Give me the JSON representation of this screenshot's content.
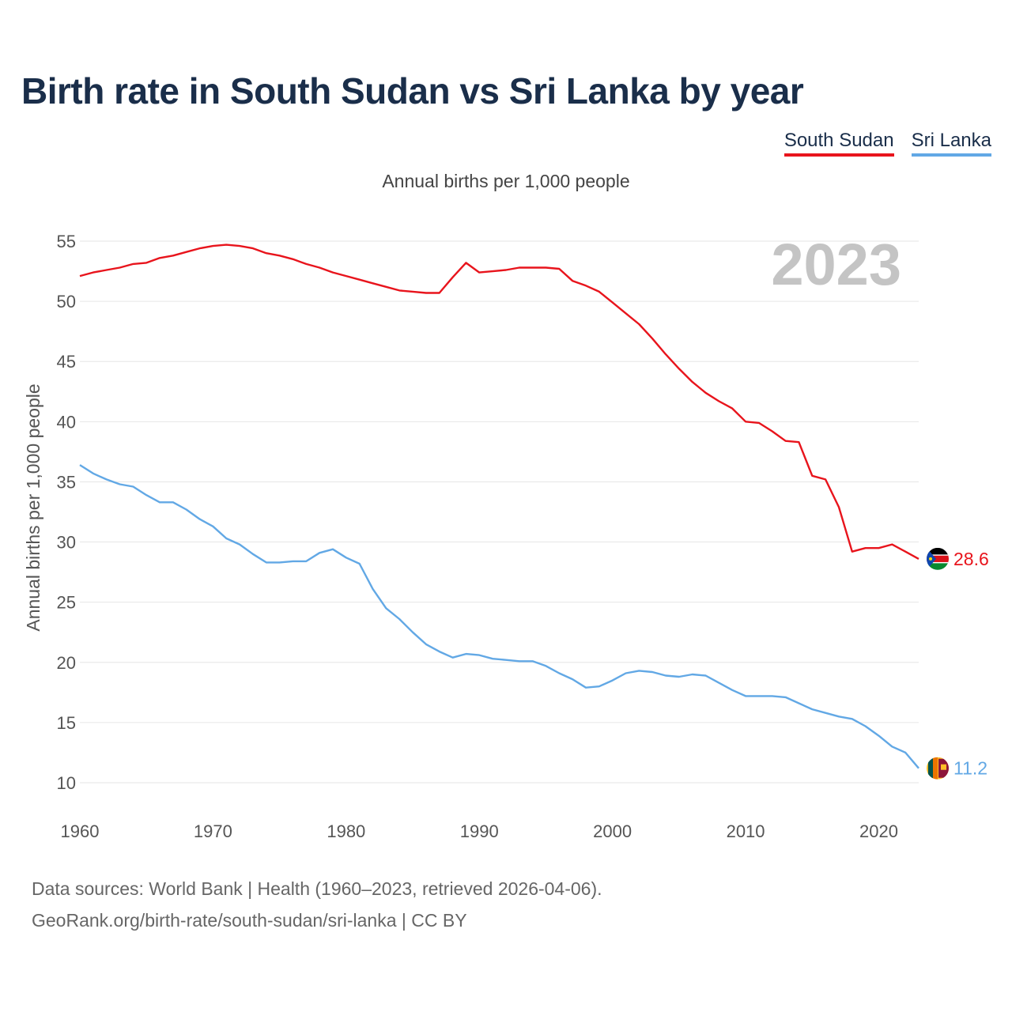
{
  "title": "Birth rate in South Sudan vs Sri Lanka by year",
  "subtitle": "Annual births per 1,000 people",
  "year_watermark": "2023",
  "footer": {
    "line1": "Data sources: World Bank | Health (1960–2023, retrieved 2026-04-06).",
    "line2": "GeoRank.org/birth-rate/south-sudan/sri-lanka | CC BY"
  },
  "legend": [
    {
      "name": "South Sudan",
      "color": "#e8141c"
    },
    {
      "name": "Sri Lanka",
      "color": "#62a8e5"
    }
  ],
  "chart_data": {
    "type": "line",
    "title": "Birth rate in South Sudan vs Sri Lanka by year",
    "ylabel": "Annual births per 1,000 people",
    "xlabel": "",
    "xlim": [
      1960,
      2023
    ],
    "ylim": [
      10,
      55
    ],
    "x_ticks": [
      1960,
      1970,
      1980,
      1990,
      2000,
      2010,
      2020
    ],
    "y_ticks": [
      10,
      15,
      20,
      25,
      30,
      35,
      40,
      45,
      50,
      55
    ],
    "grid": true,
    "x": [
      1960,
      1961,
      1962,
      1963,
      1964,
      1965,
      1966,
      1967,
      1968,
      1969,
      1970,
      1971,
      1972,
      1973,
      1974,
      1975,
      1976,
      1977,
      1978,
      1979,
      1980,
      1981,
      1982,
      1983,
      1984,
      1985,
      1986,
      1987,
      1988,
      1989,
      1990,
      1991,
      1992,
      1993,
      1994,
      1995,
      1996,
      1997,
      1998,
      1999,
      2000,
      2001,
      2002,
      2003,
      2004,
      2005,
      2006,
      2007,
      2008,
      2009,
      2010,
      2011,
      2012,
      2013,
      2014,
      2015,
      2016,
      2017,
      2018,
      2019,
      2020,
      2021,
      2022,
      2023
    ],
    "series": [
      {
        "name": "South Sudan",
        "color": "#e8141c",
        "end_label": "28.6",
        "values": [
          52.1,
          52.4,
          52.6,
          52.8,
          53.1,
          53.2,
          53.6,
          53.8,
          54.1,
          54.4,
          54.6,
          54.7,
          54.6,
          54.4,
          54.0,
          53.8,
          53.5,
          53.1,
          52.8,
          52.4,
          52.1,
          51.8,
          51.5,
          51.2,
          50.9,
          50.8,
          50.7,
          50.7,
          52.0,
          53.2,
          52.4,
          52.5,
          52.6,
          52.8,
          52.8,
          52.8,
          52.7,
          51.7,
          51.3,
          50.8,
          49.9,
          49.0,
          48.1,
          46.9,
          45.6,
          44.4,
          43.3,
          42.4,
          41.7,
          41.1,
          40.0,
          39.9,
          39.2,
          38.4,
          38.3,
          35.5,
          35.2,
          32.9,
          29.2,
          29.5,
          29.5,
          29.8,
          29.2,
          28.6
        ]
      },
      {
        "name": "Sri Lanka",
        "color": "#62a8e5",
        "end_label": "11.2",
        "values": [
          36.4,
          35.7,
          35.2,
          34.8,
          34.6,
          33.9,
          33.3,
          33.3,
          32.7,
          31.9,
          31.3,
          30.3,
          29.8,
          29.0,
          28.3,
          28.3,
          28.4,
          28.4,
          29.1,
          29.4,
          28.7,
          28.2,
          26.1,
          24.5,
          23.6,
          22.5,
          21.5,
          20.9,
          20.4,
          20.7,
          20.6,
          20.3,
          20.2,
          20.1,
          20.1,
          19.7,
          19.1,
          18.6,
          17.9,
          18.0,
          18.5,
          19.1,
          19.3,
          19.2,
          18.9,
          18.8,
          19.0,
          18.9,
          18.3,
          17.7,
          17.2,
          17.2,
          17.2,
          17.1,
          16.6,
          16.1,
          15.8,
          15.5,
          15.3,
          14.7,
          13.9,
          13.0,
          12.5,
          11.2
        ]
      }
    ]
  }
}
